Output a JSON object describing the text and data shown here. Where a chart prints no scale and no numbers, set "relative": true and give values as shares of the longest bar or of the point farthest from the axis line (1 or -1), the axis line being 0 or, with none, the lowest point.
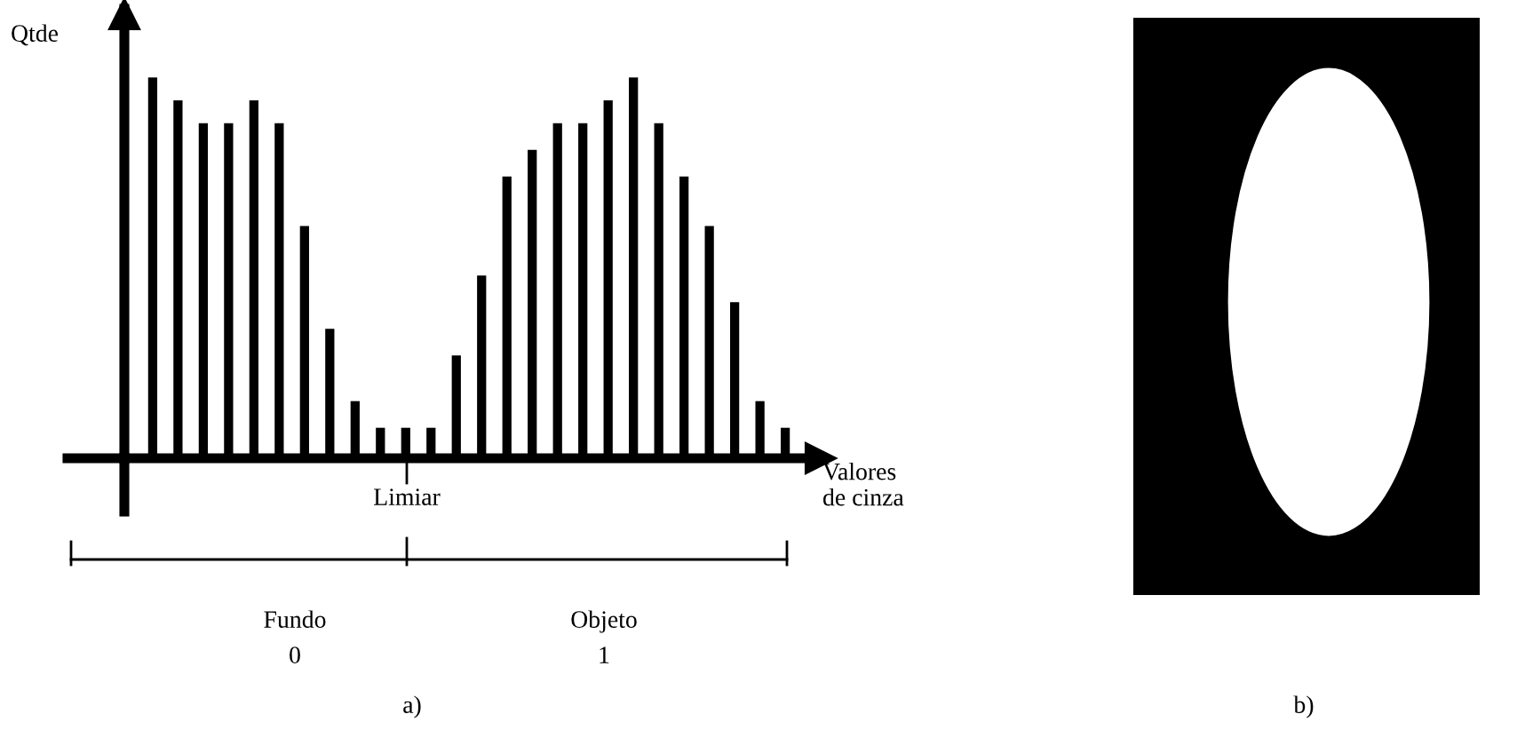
{
  "chart_data": {
    "type": "bar",
    "relative": true,
    "color": "#000000",
    "categories": [
      null,
      null,
      null,
      null,
      null,
      null,
      null,
      null,
      null,
      null,
      null,
      null,
      null,
      null,
      null,
      null,
      null,
      null,
      null,
      null,
      null,
      null,
      null,
      null,
      null,
      null
    ],
    "values": [
      1.0,
      0.94,
      0.88,
      0.88,
      0.94,
      0.88,
      0.61,
      0.34,
      0.15,
      0.08,
      0.08,
      0.08,
      0.27,
      0.48,
      0.74,
      0.81,
      0.88,
      0.88,
      0.94,
      1.0,
      0.88,
      0.74,
      0.61,
      0.41,
      0.15,
      0.08
    ],
    "xlabel": "Valores\nde cinza",
    "ylabel": "Qtde",
    "annotations": [
      "Limiar",
      "Fundo",
      "0",
      "Objeto",
      "1",
      "a)",
      "b)"
    ]
  }
}
